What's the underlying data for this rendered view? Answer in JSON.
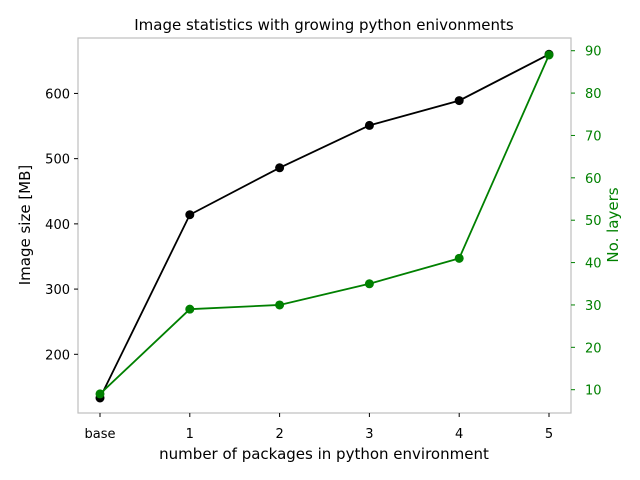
{
  "chart_data": {
    "type": "line",
    "title": "Image statistics with growing python enivonments",
    "xlabel": "number of packages in python environment",
    "categories": [
      "base",
      "1",
      "2",
      "3",
      "4",
      "5"
    ],
    "y_left": {
      "label": "Image size [MB]",
      "lim": [
        110,
        685
      ],
      "ticks": [
        200,
        300,
        400,
        500,
        600
      ],
      "tick_labels": [
        "200",
        "300",
        "400",
        "500",
        "600"
      ]
    },
    "y_right": {
      "label": "No. layers",
      "lim": [
        4.5,
        93
      ],
      "ticks": [
        10,
        20,
        30,
        40,
        50,
        60,
        70,
        80,
        90
      ],
      "tick_labels": [
        "10",
        "20",
        "30",
        "40",
        "50",
        "60",
        "70",
        "80",
        "90"
      ]
    },
    "grid": false,
    "series": [
      {
        "key": "size",
        "axis": "left",
        "color": "#000000",
        "values": [
          133,
          414,
          486,
          551,
          589,
          660
        ]
      },
      {
        "key": "layers",
        "axis": "right",
        "color": "#008000",
        "values": [
          9,
          29,
          30,
          35,
          41,
          89
        ]
      }
    ],
    "colors": {
      "spine": "#bfbfbf",
      "right_axis": "#008000",
      "text": "#000000"
    }
  }
}
